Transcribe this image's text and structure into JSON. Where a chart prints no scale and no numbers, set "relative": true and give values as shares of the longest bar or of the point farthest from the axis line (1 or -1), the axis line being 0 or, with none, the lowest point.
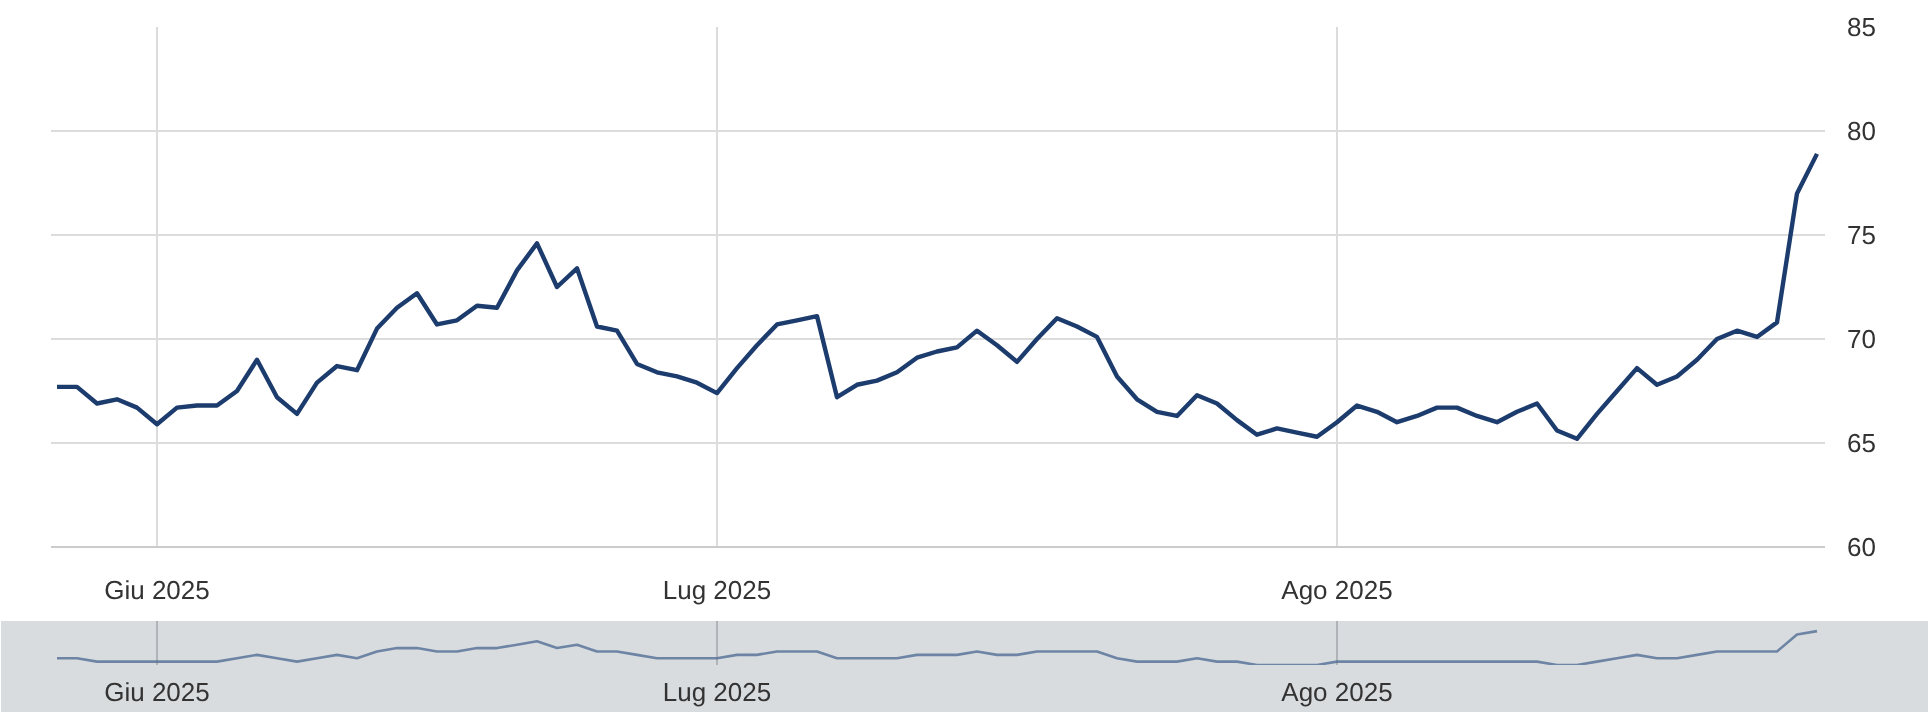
{
  "chart_data": [
    {
      "type": "line",
      "color": "#1d3c6e",
      "grid": true,
      "marker": "none",
      "line_style": "solid",
      "ylim": [
        60,
        85
      ],
      "yticks": [
        60,
        65,
        70,
        75,
        80,
        85
      ],
      "categories": [
        null,
        null,
        null,
        null,
        null,
        "Giu 2025",
        null,
        null,
        null,
        null,
        null,
        null,
        null,
        null,
        null,
        null,
        null,
        null,
        null,
        null,
        null,
        null,
        null,
        null,
        null,
        null,
        null,
        null,
        null,
        null,
        null,
        null,
        null,
        "Lug 2025",
        null,
        null,
        null,
        null,
        null,
        null,
        null,
        null,
        null,
        null,
        null,
        null,
        null,
        null,
        null,
        null,
        null,
        null,
        null,
        null,
        null,
        null,
        null,
        null,
        null,
        null,
        null,
        null,
        null,
        null,
        "Ago 2025",
        null,
        null,
        null,
        null,
        null,
        null,
        null,
        null,
        null,
        null,
        null,
        null,
        null,
        null,
        null,
        null,
        null,
        null,
        null,
        null,
        null,
        null,
        null,
        null
      ],
      "values": [
        67.7,
        67.7,
        66.9,
        67.1,
        66.7,
        65.9,
        66.7,
        66.8,
        66.8,
        67.5,
        69.0,
        67.2,
        66.4,
        67.9,
        68.7,
        68.5,
        70.5,
        71.5,
        72.2,
        70.7,
        70.9,
        71.6,
        71.5,
        73.3,
        74.6,
        72.5,
        73.4,
        70.6,
        70.4,
        68.8,
        68.4,
        68.2,
        67.9,
        67.4,
        68.6,
        69.7,
        70.7,
        70.9,
        71.1,
        67.2,
        67.8,
        68.0,
        68.4,
        69.1,
        69.4,
        69.6,
        70.4,
        69.7,
        68.9,
        70.0,
        71.0,
        70.6,
        70.1,
        68.2,
        67.1,
        66.5,
        66.3,
        67.3,
        66.9,
        66.1,
        65.4,
        65.7,
        65.5,
        65.3,
        66.0,
        66.8,
        66.5,
        66.0,
        66.3,
        66.7,
        66.7,
        66.3,
        66.0,
        66.5,
        66.9,
        65.6,
        65.2,
        66.4,
        67.5,
        68.6,
        67.8,
        68.2,
        69.0,
        70.0,
        70.4,
        70.1,
        70.8,
        77.0,
        78.9
      ]
    },
    {
      "type": "line",
      "color": "#4a6792",
      "relative": true,
      "grid": "x",
      "marker": "none",
      "line_style": "solid",
      "categories": [
        null,
        null,
        null,
        null,
        null,
        "Giu 2025",
        null,
        null,
        null,
        null,
        null,
        null,
        null,
        null,
        null,
        null,
        null,
        null,
        null,
        null,
        null,
        null,
        null,
        null,
        null,
        null,
        null,
        null,
        null,
        null,
        null,
        null,
        null,
        "Lug 2025",
        null,
        null,
        null,
        null,
        null,
        null,
        null,
        null,
        null,
        null,
        null,
        null,
        null,
        null,
        null,
        null,
        null,
        null,
        null,
        null,
        null,
        null,
        null,
        null,
        null,
        null,
        null,
        null,
        null,
        null,
        "Ago 2025",
        null,
        null,
        null,
        null,
        null,
        null,
        null,
        null,
        null,
        null,
        null,
        null,
        null,
        null,
        null,
        null,
        null,
        null,
        null,
        null,
        null,
        null,
        null,
        null
      ],
      "values": [
        0.2,
        0.2,
        0.1,
        0.1,
        0.1,
        0.1,
        0.1,
        0.1,
        0.1,
        0.2,
        0.3,
        0.2,
        0.1,
        0.2,
        0.3,
        0.2,
        0.4,
        0.5,
        0.5,
        0.4,
        0.4,
        0.5,
        0.5,
        0.6,
        0.7,
        0.5,
        0.6,
        0.4,
        0.4,
        0.3,
        0.2,
        0.2,
        0.2,
        0.2,
        0.3,
        0.3,
        0.4,
        0.4,
        0.4,
        0.2,
        0.2,
        0.2,
        0.2,
        0.3,
        0.3,
        0.3,
        0.4,
        0.3,
        0.3,
        0.4,
        0.4,
        0.4,
        0.4,
        0.2,
        0.1,
        0.1,
        0.1,
        0.2,
        0.1,
        0.1,
        0,
        0,
        0,
        0,
        0.1,
        0.1,
        0.1,
        0.1,
        0.1,
        0.1,
        0.1,
        0.1,
        0.1,
        0.1,
        0.1,
        0,
        0,
        0.1,
        0.2,
        0.3,
        0.2,
        0.2,
        0.3,
        0.4,
        0.4,
        0.4,
        0.4,
        0.9,
        1
      ]
    }
  ]
}
